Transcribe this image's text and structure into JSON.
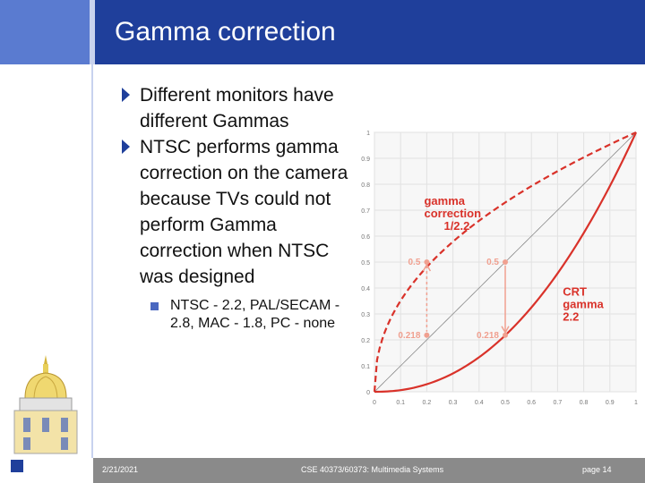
{
  "slide": {
    "title": "Gamma correction",
    "bullets": [
      "Different monitors have different Gammas",
      "NTSC performs gamma correction on the camera because TVs could not perform Gamma correction when NTSC was designed"
    ],
    "sub_bullets": [
      "NTSC - 2.2, PAL/SECAM - 2.8, MAC - 1.8, PC - none"
    ]
  },
  "footer": {
    "date": "2/21/2021",
    "course": "CSE 40373/60373: Multimedia Systems",
    "page": "page 14"
  },
  "colors": {
    "title_bg": "#1f3f9b",
    "curve": "#d9322a",
    "arrow": "#f0a090"
  },
  "chart_data": {
    "type": "line",
    "xlim": [
      0,
      1
    ],
    "ylim": [
      0,
      1
    ],
    "x_ticks": [
      "0",
      "0.1",
      "0.2",
      "0.3",
      "0.4",
      "0.5",
      "0.6",
      "0.7",
      "0.8",
      "0.9",
      "1"
    ],
    "y_ticks": [
      "0",
      "0.1",
      "0.2",
      "0.3",
      "0.4",
      "0.5",
      "0.6",
      "0.7",
      "0.8",
      "0.9",
      "1"
    ],
    "series": [
      {
        "name": "gamma correction 1/2.2",
        "exponent": 0.4545,
        "style": "dashed"
      },
      {
        "name": "",
        "exponent": 1,
        "style": "thin"
      },
      {
        "name": "CRT gamma 2.2",
        "exponent": 2.2,
        "style": "solid"
      }
    ],
    "annotations": [
      {
        "text": "gamma\ncorrection\n1/2.2",
        "x": 0.19,
        "y": 0.72
      },
      {
        "text": "CRT\ngamma\n2.2",
        "x": 0.72,
        "y": 0.37
      },
      {
        "text": "0.5",
        "x": 0.2,
        "y": 0.5,
        "kind": "point-label"
      },
      {
        "text": "0.5",
        "x": 0.5,
        "y": 0.5,
        "kind": "point-label"
      },
      {
        "text": "0.218",
        "x": 0.2,
        "y": 0.218,
        "kind": "point-label"
      },
      {
        "text": "0.218",
        "x": 0.5,
        "y": 0.218,
        "kind": "point-label"
      }
    ]
  }
}
